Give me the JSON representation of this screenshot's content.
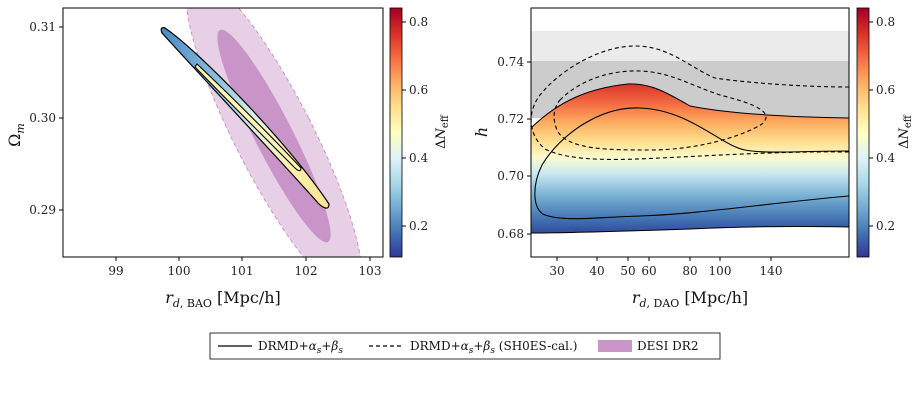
{
  "chart_data": [
    {
      "type": "contour",
      "xlabel": "r_{d,BAO} [Mpc/h]",
      "ylabel": "Ω_m",
      "x_ticks": [
        "99",
        "100",
        "101",
        "102",
        "103"
      ],
      "y_ticks": [
        "0.29",
        "0.30",
        "0.31"
      ],
      "xlim": [
        98.2,
        103.2
      ],
      "ylim": [
        0.2848,
        0.312
      ],
      "colorbar": {
        "label": "ΔN_eff",
        "ticks": [
          "0.2",
          "0.4",
          "0.6",
          "0.8"
        ],
        "range": [
          0.1,
          0.85
        ]
      },
      "series": [
        {
          "name": "DESI DR2",
          "regions": [
            "1σ",
            "2σ"
          ],
          "center": [
            101.35,
            0.2985
          ]
        },
        {
          "name": "DRMD+α_s+β_s",
          "from": [
            99.8,
            0.31
          ],
          "to": [
            102.35,
            0.2905
          ]
        }
      ]
    },
    {
      "type": "contour",
      "xlabel": "r_{d,DAO} [Mpc/h]",
      "ylabel": "h",
      "x_ticks": [
        "30",
        "40",
        "50",
        "60",
        "80",
        "100",
        "140"
      ],
      "y_ticks": [
        "0.68",
        "0.70",
        "0.72",
        "0.74"
      ],
      "xlim": [
        22,
        230
      ],
      "ylim": [
        0.6725,
        0.7585
      ],
      "colorbar": {
        "label": "ΔN_eff",
        "ticks": [
          "0.2",
          "0.4",
          "0.6",
          "0.8"
        ],
        "range": [
          0.1,
          0.85
        ]
      },
      "bands": [
        {
          "range": [
            0.741,
            0.751
          ],
          "color": "#ebebeb"
        },
        {
          "range": [
            0.7215,
            0.741
          ],
          "color": "#cccccc"
        }
      ]
    }
  ],
  "legend": {
    "items": [
      {
        "label": "DRMD+α_s+β_s",
        "style": "solid"
      },
      {
        "label": "DRMD+α_s+β_s (SH0ES-cal.)",
        "style": "dashed"
      },
      {
        "label": "DESI DR2",
        "style": "patch",
        "color": "#c994c7"
      }
    ]
  }
}
